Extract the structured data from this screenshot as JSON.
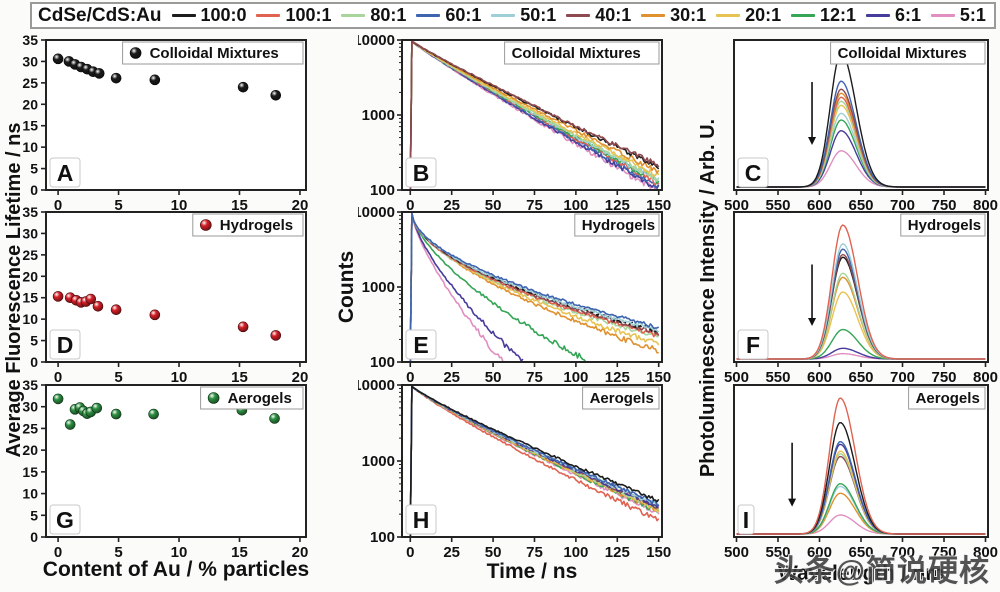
{
  "figure": {
    "watermark": "头条@简说硬核"
  },
  "legend": {
    "title": "CdSe/CdS:Au",
    "entries": [
      {
        "label": "100:0",
        "color": "#1c1c1c"
      },
      {
        "label": "100:1",
        "color": "#e06352"
      },
      {
        "label": "80:1",
        "color": "#a8d59c"
      },
      {
        "label": "60:1",
        "color": "#3e63af"
      },
      {
        "label": "50:1",
        "color": "#9fcfd6"
      },
      {
        "label": "40:1",
        "color": "#8e4a50"
      },
      {
        "label": "30:1",
        "color": "#e0912f"
      },
      {
        "label": "20:1",
        "color": "#e7c353"
      },
      {
        "label": "12:1",
        "color": "#35a556"
      },
      {
        "label": "6:1",
        "color": "#463c9c"
      },
      {
        "label": "5:1",
        "color": "#e08fc0"
      }
    ]
  },
  "axis_labels": {
    "left_y": "Average Fluorescence Lifetime / ns",
    "mid_y": "Counts",
    "right_y": "Photoluminescence Intensity / Arb. U.",
    "col1_x": "Content of Au / % particles",
    "col2_x": "Time / ns",
    "col3_x": "Wavelength / nm"
  },
  "chart_data": [
    {
      "id": "A",
      "type": "scatter",
      "row": 0,
      "col": 0,
      "title": "Colloidal Mixtures",
      "marker_color": "#1c1c1c",
      "xlabel": "Content of Au / % particles",
      "ylabel": "Average Fluorescence Lifetime / ns",
      "x": [
        0,
        0.9,
        1.4,
        1.9,
        2.4,
        2.9,
        3.4,
        4.8,
        8.0,
        15.3,
        18.0
      ],
      "y": [
        30.6,
        30.0,
        29.3,
        28.7,
        28.2,
        27.6,
        27.2,
        26.1,
        25.7,
        24.0,
        22.1
      ],
      "xlim": [
        -1,
        20.5
      ],
      "ylim": [
        0,
        35
      ],
      "xticks": [
        0,
        5,
        10,
        15,
        20
      ],
      "yticks": [
        0,
        5,
        10,
        15,
        20,
        25,
        30,
        35
      ]
    },
    {
      "id": "B",
      "type": "decay",
      "row": 0,
      "col": 1,
      "title": "Colloidal Mixtures",
      "xlabel": "Time / ns",
      "ylabel": "Counts",
      "xlim": [
        -5,
        152
      ],
      "xticks": [
        0,
        25,
        50,
        75,
        100,
        125,
        150
      ],
      "ylog_ticks": [
        100,
        1000,
        10000
      ],
      "peak": 9600,
      "series": [
        {
          "ratio": "5:1",
          "end": 96,
          "p": 0.93
        },
        {
          "ratio": "6:1",
          "end": 104,
          "p": 0.93
        },
        {
          "ratio": "60:1",
          "end": 112,
          "p": 0.93
        },
        {
          "ratio": "100:1",
          "end": 122,
          "p": 0.93
        },
        {
          "ratio": "12:1",
          "end": 128,
          "p": 0.93
        },
        {
          "ratio": "50:1",
          "end": 135,
          "p": 0.93
        },
        {
          "ratio": "80:1",
          "end": 140,
          "p": 0.93
        },
        {
          "ratio": "20:1",
          "end": 155,
          "p": 0.93
        },
        {
          "ratio": "30:1",
          "end": 175,
          "p": 0.93
        },
        {
          "ratio": "100:0",
          "end": 205,
          "p": 0.93
        },
        {
          "ratio": "40:1",
          "end": 215,
          "p": 0.93
        }
      ]
    },
    {
      "id": "C",
      "type": "spectrum",
      "row": 0,
      "col": 2,
      "title": "Colloidal Mixtures",
      "xlabel": "Wavelength / nm",
      "ylabel": "Photoluminescence Intensity / Arb. U.",
      "center": 626,
      "sigma_left": 13,
      "sigma_right": 18,
      "xlim": [
        497,
        803
      ],
      "xticks": [
        500,
        550,
        600,
        650,
        700,
        750,
        800
      ],
      "arrow": {
        "x": 591,
        "top": 0.72,
        "bot": 0.3
      },
      "series": [
        {
          "ratio": "5:1",
          "amp": 0.27
        },
        {
          "ratio": "6:1",
          "amp": 0.42
        },
        {
          "ratio": "12:1",
          "amp": 0.5
        },
        {
          "ratio": "50:1",
          "amp": 0.55
        },
        {
          "ratio": "20:1",
          "amp": 0.61
        },
        {
          "ratio": "80:1",
          "amp": 0.64
        },
        {
          "ratio": "100:1",
          "amp": 0.67
        },
        {
          "ratio": "30:1",
          "amp": 0.7
        },
        {
          "ratio": "40:1",
          "amp": 0.73
        },
        {
          "ratio": "60:1",
          "amp": 0.79
        },
        {
          "ratio": "100:0",
          "amp": 1.0
        }
      ]
    },
    {
      "id": "D",
      "type": "scatter",
      "row": 1,
      "col": 0,
      "title": "Hydrogels",
      "marker_color": "#d42027",
      "xlabel": "Content of Au / % particles",
      "ylabel": "Average Fluorescence Lifetime / ns",
      "x": [
        0,
        1.0,
        1.5,
        1.9,
        2.3,
        2.7,
        3.3,
        4.8,
        8.0,
        15.3,
        18.0
      ],
      "y": [
        15.3,
        15.0,
        14.4,
        13.9,
        14.1,
        14.7,
        13.0,
        12.2,
        11.0,
        8.2,
        6.2
      ],
      "xlim": [
        -1,
        20.5
      ],
      "ylim": [
        0,
        35
      ],
      "xticks": [
        0,
        5,
        10,
        15,
        20
      ],
      "yticks": [
        0,
        5,
        10,
        15,
        20,
        25,
        30,
        35
      ]
    },
    {
      "id": "E",
      "type": "decay",
      "row": 1,
      "col": 1,
      "title": "Hydrogels",
      "xlabel": "Time / ns",
      "ylabel": "Counts",
      "xlim": [
        -5,
        152
      ],
      "xticks": [
        0,
        25,
        50,
        75,
        100,
        125,
        150
      ],
      "ylog_ticks": [
        100,
        1000,
        10000
      ],
      "peak": 9600,
      "series": [
        {
          "ratio": "5:1",
          "end": 100,
          "tend": 56,
          "p": 0.72
        },
        {
          "ratio": "6:1",
          "end": 100,
          "tend": 68,
          "p": 0.7
        },
        {
          "ratio": "12:1",
          "end": 100,
          "tend": 108,
          "p": 0.65
        },
        {
          "ratio": "30:1",
          "end": 140,
          "p": 0.6
        },
        {
          "ratio": "20:1",
          "end": 175,
          "p": 0.58
        },
        {
          "ratio": "80:1",
          "end": 215,
          "p": 0.55
        },
        {
          "ratio": "100:1",
          "end": 225,
          "p": 0.55
        },
        {
          "ratio": "40:1",
          "end": 240,
          "p": 0.55
        },
        {
          "ratio": "100:0",
          "end": 255,
          "p": 0.55,
          "dash": true
        },
        {
          "ratio": "50:1",
          "end": 265,
          "p": 0.55
        },
        {
          "ratio": "60:1",
          "end": 290,
          "p": 0.55
        }
      ]
    },
    {
      "id": "F",
      "type": "spectrum",
      "row": 1,
      "col": 2,
      "title": "Hydrogels",
      "xlabel": "Wavelength / nm",
      "ylabel": "Photoluminescence Intensity / Arb. U.",
      "center": 628,
      "sigma_left": 13,
      "sigma_right": 18,
      "xlim": [
        497,
        803
      ],
      "xticks": [
        500,
        550,
        600,
        650,
        700,
        750,
        800
      ],
      "arrow": {
        "x": 591,
        "top": 0.65,
        "bot": 0.24
      },
      "series": [
        {
          "ratio": "5:1",
          "amp": 0.04
        },
        {
          "ratio": "6:1",
          "amp": 0.08
        },
        {
          "ratio": "12:1",
          "amp": 0.22
        },
        {
          "ratio": "20:1",
          "amp": 0.5
        },
        {
          "ratio": "30:1",
          "amp": 0.61
        },
        {
          "ratio": "80:1",
          "amp": 0.64
        },
        {
          "ratio": "100:0",
          "amp": 0.76
        },
        {
          "ratio": "40:1",
          "amp": 0.78
        },
        {
          "ratio": "60:1",
          "amp": 0.82
        },
        {
          "ratio": "50:1",
          "amp": 0.86
        },
        {
          "ratio": "100:1",
          "amp": 1.0
        }
      ]
    },
    {
      "id": "G",
      "type": "scatter",
      "row": 2,
      "col": 0,
      "title": "Aerogels",
      "marker_color": "#2e9142",
      "xlabel": "Content of Au / % particles",
      "ylabel": "Average Fluorescence Lifetime / ns",
      "x": [
        0,
        1.0,
        1.4,
        1.8,
        2.1,
        2.4,
        2.7,
        3.2,
        4.8,
        7.9,
        15.2,
        17.9
      ],
      "y": [
        31.8,
        25.9,
        29.4,
        29.8,
        29.0,
        28.4,
        28.8,
        29.7,
        28.3,
        28.3,
        29.2,
        27.3
      ],
      "xlim": [
        -1,
        20.5
      ],
      "ylim": [
        0,
        35
      ],
      "xticks": [
        0,
        5,
        10,
        15,
        20
      ],
      "yticks": [
        0,
        5,
        10,
        15,
        20,
        25,
        30,
        35
      ]
    },
    {
      "id": "H",
      "type": "decay",
      "row": 2,
      "col": 1,
      "title": "Aerogels",
      "xlabel": "Time / ns",
      "ylabel": "Counts",
      "xlim": [
        -5,
        152
      ],
      "xticks": [
        0,
        25,
        50,
        75,
        100,
        125,
        150
      ],
      "ylog_ticks": [
        100,
        1000,
        10000
      ],
      "peak": 9600,
      "series": [
        {
          "ratio": "100:1",
          "end": 165,
          "p": 0.88
        },
        {
          "ratio": "5:1",
          "end": 205,
          "p": 0.88
        },
        {
          "ratio": "12:1",
          "end": 215,
          "p": 0.88
        },
        {
          "ratio": "30:1",
          "end": 222,
          "p": 0.88
        },
        {
          "ratio": "20:1",
          "end": 228,
          "p": 0.88
        },
        {
          "ratio": "80:1",
          "end": 235,
          "p": 0.88
        },
        {
          "ratio": "40:1",
          "end": 245,
          "p": 0.88
        },
        {
          "ratio": "6:1",
          "end": 250,
          "p": 0.88
        },
        {
          "ratio": "50:1",
          "end": 260,
          "p": 0.88
        },
        {
          "ratio": "60:1",
          "end": 270,
          "p": 0.88
        },
        {
          "ratio": "100:0",
          "end": 300,
          "p": 0.88
        }
      ]
    },
    {
      "id": "I",
      "type": "spectrum",
      "row": 2,
      "col": 2,
      "title": "Aerogels",
      "xlabel": "Wavelength / nm",
      "ylabel": "Photoluminescence Intensity / Arb. U.",
      "center": 625,
      "sigma_left": 13,
      "sigma_right": 18,
      "xlim": [
        497,
        803
      ],
      "xticks": [
        500,
        550,
        600,
        650,
        700,
        750,
        800
      ],
      "arrow": {
        "x": 567,
        "top": 0.62,
        "bot": 0.2
      },
      "series": [
        {
          "ratio": "5:1",
          "amp": 0.14
        },
        {
          "ratio": "30:1",
          "amp": 0.3
        },
        {
          "ratio": "50:1",
          "amp": 0.35
        },
        {
          "ratio": "12:1",
          "amp": 0.37
        },
        {
          "ratio": "40:1",
          "amp": 0.57
        },
        {
          "ratio": "80:1",
          "amp": 0.59
        },
        {
          "ratio": "20:1",
          "amp": 0.61
        },
        {
          "ratio": "6:1",
          "amp": 0.66
        },
        {
          "ratio": "60:1",
          "amp": 0.68
        },
        {
          "ratio": "100:0",
          "amp": 0.82
        },
        {
          "ratio": "100:1",
          "amp": 1.0
        }
      ]
    }
  ]
}
